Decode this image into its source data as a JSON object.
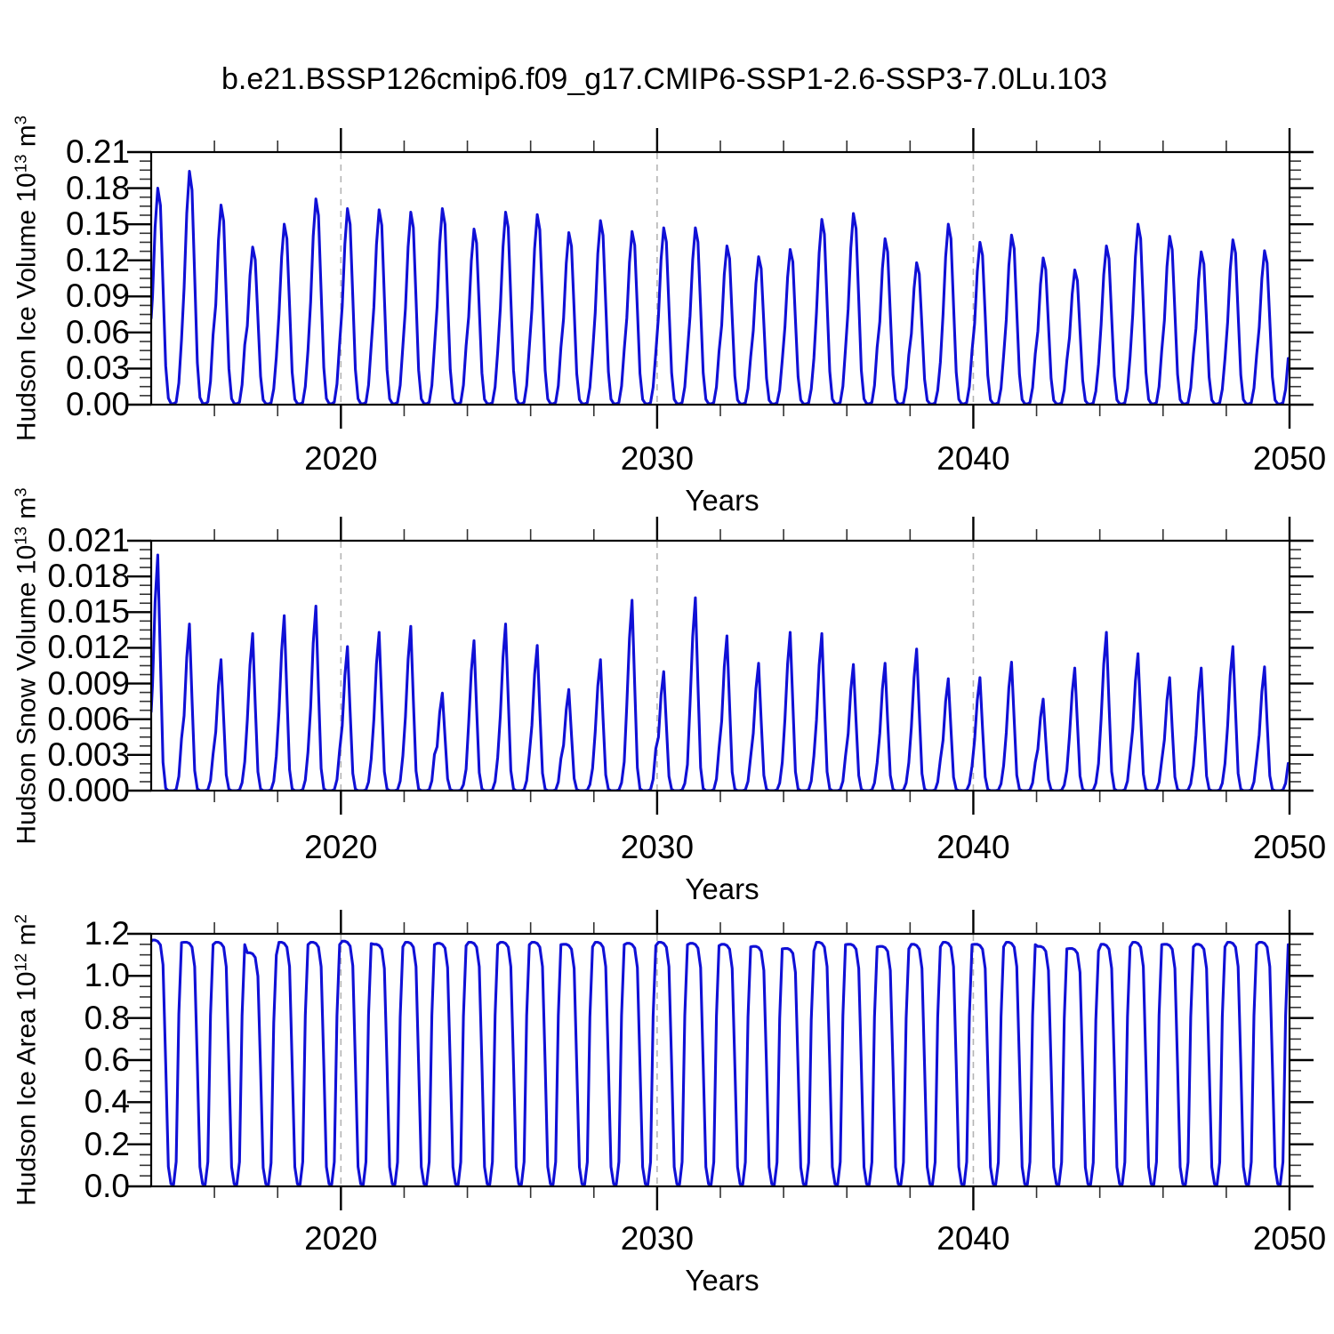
{
  "title": "b.e21.BSSP126cmip6.f09_g17.CMIP6-SSP1-2.6-SSP3-7.0Lu.103",
  "style": {
    "curve_color": "#1010d6",
    "axis_color": "#000000",
    "minor_tick_color": "#333333",
    "dashed_gridline_color": "#b4b4b4",
    "background": "#ffffff",
    "text_color": "#000000"
  },
  "x_axis": {
    "label": "Years",
    "range_years": [
      2014,
      2050
    ],
    "major_tick_years": [
      2020,
      2030,
      2040,
      2050
    ],
    "major_tick_labels": [
      "2020",
      "2030",
      "2040",
      "2050"
    ],
    "minor_tick_interval_years": 2,
    "dashed_gridline_years": [
      2020,
      2030,
      2040
    ]
  },
  "panels": [
    {
      "id": "hudson-ice-volume",
      "y_axis_title_plain": "Hudson Ice Volume 10^13 m^3",
      "y_title_segments": [
        {
          "text": "Hudson Ice Volume 10"
        },
        {
          "sup": "13"
        },
        {
          "text": " m"
        },
        {
          "sup": "3"
        }
      ],
      "y_tick_labels": [
        "0.21",
        "0.18",
        "0.15",
        "0.12",
        "0.09",
        "0.06",
        "0.03",
        "0.00"
      ],
      "x_axis_label": "Years"
    },
    {
      "id": "hudson-snow-volume",
      "y_axis_title_plain": "Hudson Snow Volume 10^13 m^3",
      "y_title_segments": [
        {
          "text": "Hudson Snow Volume 10"
        },
        {
          "sup": "13"
        },
        {
          "text": " m"
        },
        {
          "sup": "3"
        }
      ],
      "y_tick_labels": [
        "0.021",
        "0.018",
        "0.015",
        "0.012",
        "0.009",
        "0.006",
        "0.003",
        "0.000"
      ],
      "x_axis_label": "Years"
    },
    {
      "id": "hudson-ice-area",
      "y_axis_title_plain": "Hudson Ice Area 10^12 m^2",
      "y_title_segments": [
        {
          "text": "Hudson Ice Area 10"
        },
        {
          "sup": "12"
        },
        {
          "text": " m"
        },
        {
          "sup": "2"
        }
      ],
      "y_tick_labels": [
        "1.2",
        "1.0",
        "0.8",
        "0.6",
        "0.4",
        "0.2",
        "0.0"
      ],
      "x_axis_label": "Years"
    }
  ],
  "chart_data": [
    {
      "type": "line",
      "title": "Hudson Ice Volume",
      "ylabel": "Hudson Ice Volume 10^13 m^3",
      "units": "10^13 m^3",
      "sampling": "monthly seasonal cycle, peak in March, minimum (~0) Aug-Oct",
      "xlim": [
        2014,
        2050
      ],
      "ylim": [
        0,
        0.21
      ],
      "y_major_step": 0.03,
      "grid": "dashed vertical lines at decades",
      "legend": false,
      "line_color": "#1010d6",
      "x_years": [
        2014,
        2015,
        2016,
        2017,
        2018,
        2019,
        2020,
        2021,
        2022,
        2023,
        2024,
        2025,
        2026,
        2027,
        2028,
        2029,
        2030,
        2031,
        2032,
        2033,
        2034,
        2035,
        2036,
        2037,
        2038,
        2039,
        2040,
        2041,
        2042,
        2043,
        2044,
        2045,
        2046,
        2047,
        2048,
        2049
      ],
      "annual_peak_values": [
        0.18,
        0.194,
        0.166,
        0.131,
        0.15,
        0.171,
        0.163,
        0.162,
        0.16,
        0.163,
        0.146,
        0.16,
        0.158,
        0.143,
        0.153,
        0.144,
        0.147,
        0.147,
        0.132,
        0.123,
        0.129,
        0.154,
        0.159,
        0.138,
        0.118,
        0.15,
        0.135,
        0.141,
        0.122,
        0.112,
        0.132,
        0.15,
        0.14,
        0.127,
        0.137,
        0.128
      ],
      "seasonal_profile_by_month": [
        0.5,
        0.82,
        1.0,
        0.92,
        0.55,
        0.18,
        0.03,
        0.006,
        0.004,
        0.012,
        0.1,
        0.3
      ]
    },
    {
      "type": "line",
      "title": "Hudson Snow Volume",
      "ylabel": "Hudson Snow Volume 10^13 m^3",
      "units": "10^13 m^3",
      "sampling": "monthly seasonal cycle, sharp peak in March, zero Jun-Oct",
      "xlim": [
        2014,
        2050
      ],
      "ylim": [
        0,
        0.021
      ],
      "y_major_step": 0.003,
      "grid": "dashed vertical lines at decades",
      "legend": false,
      "line_color": "#1010d6",
      "x_years": [
        2014,
        2015,
        2016,
        2017,
        2018,
        2019,
        2020,
        2021,
        2022,
        2023,
        2024,
        2025,
        2026,
        2027,
        2028,
        2029,
        2030,
        2031,
        2032,
        2033,
        2034,
        2035,
        2036,
        2037,
        2038,
        2039,
        2040,
        2041,
        2042,
        2043,
        2044,
        2045,
        2046,
        2047,
        2048,
        2049
      ],
      "annual_peak_values": [
        0.0198,
        0.014,
        0.011,
        0.0132,
        0.0147,
        0.0155,
        0.0121,
        0.0133,
        0.0138,
        0.0082,
        0.0126,
        0.014,
        0.0122,
        0.0085,
        0.011,
        0.016,
        0.01,
        0.0162,
        0.013,
        0.0107,
        0.0133,
        0.0132,
        0.0106,
        0.0107,
        0.0119,
        0.0094,
        0.0095,
        0.0108,
        0.0077,
        0.0103,
        0.0133,
        0.0115,
        0.0095,
        0.0103,
        0.0121,
        0.0104
      ],
      "seasonal_profile_by_month": [
        0.45,
        0.8,
        1.0,
        0.55,
        0.12,
        0.01,
        0.0,
        0.0,
        0.0,
        0.005,
        0.06,
        0.22
      ]
    },
    {
      "type": "line",
      "title": "Hudson Ice Area",
      "ylabel": "Hudson Ice Area 10^12 m^2",
      "units": "10^12 m^2",
      "sampling": "monthly seasonal cycle, saturated flat top Dec-May near 1.16, open water Aug-Oct",
      "xlim": [
        2014,
        2050
      ],
      "ylim": [
        0,
        1.2
      ],
      "y_major_step": 0.2,
      "grid": "dashed vertical lines at decades",
      "legend": false,
      "line_color": "#1010d6",
      "x_years": [
        2014,
        2015,
        2016,
        2017,
        2018,
        2019,
        2020,
        2021,
        2022,
        2023,
        2024,
        2025,
        2026,
        2027,
        2028,
        2029,
        2030,
        2031,
        2032,
        2033,
        2034,
        2035,
        2036,
        2037,
        2038,
        2039,
        2040,
        2041,
        2042,
        2043,
        2044,
        2045,
        2046,
        2047,
        2048,
        2049
      ],
      "annual_peak_values": [
        1.17,
        1.16,
        1.16,
        1.11,
        1.16,
        1.16,
        1.165,
        1.15,
        1.16,
        1.155,
        1.16,
        1.16,
        1.16,
        1.15,
        1.16,
        1.155,
        1.16,
        1.155,
        1.15,
        1.14,
        1.13,
        1.16,
        1.15,
        1.14,
        1.15,
        1.16,
        1.15,
        1.16,
        1.14,
        1.13,
        1.15,
        1.16,
        1.15,
        1.15,
        1.16,
        1.16
      ],
      "seasonal_profile_by_month": [
        1.0,
        1.0,
        0.995,
        0.98,
        0.9,
        0.5,
        0.08,
        0.01,
        0.008,
        0.1,
        0.7,
        0.99
      ]
    }
  ]
}
